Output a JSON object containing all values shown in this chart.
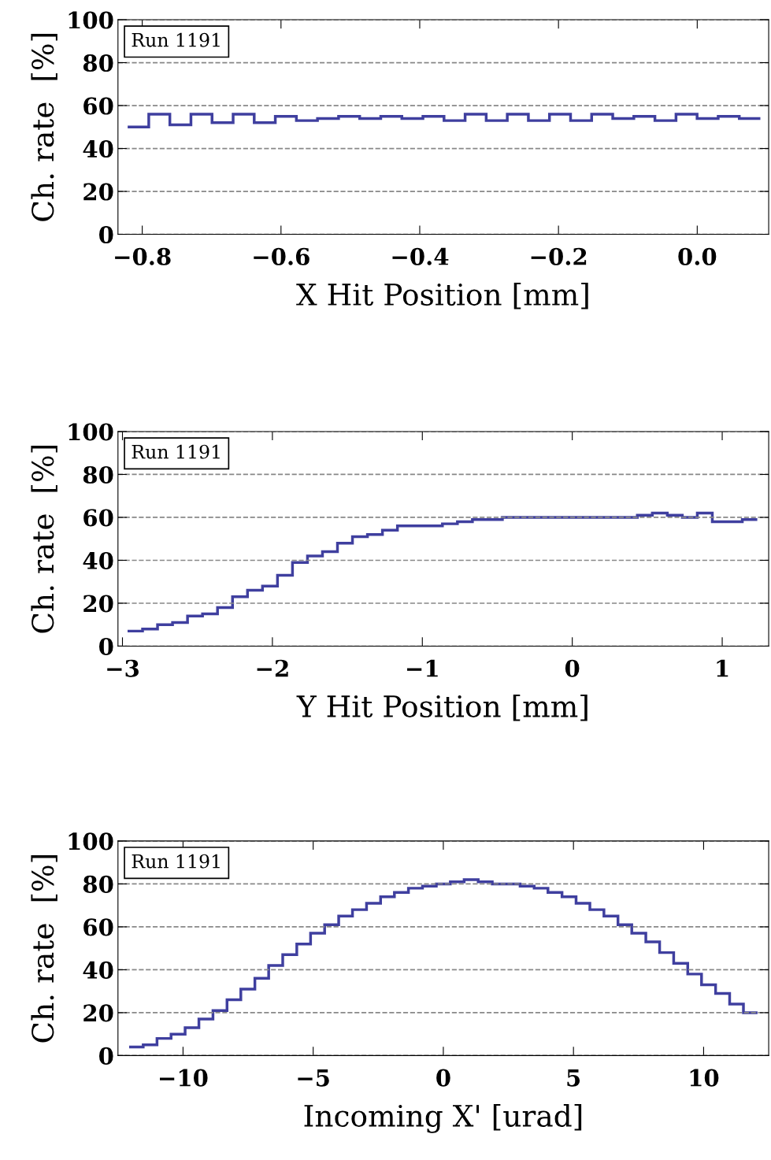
{
  "chart_data": [
    {
      "type": "histogram",
      "xlabel": "X Hit Position [mm]",
      "ylabel": "Ch. rate  [%]",
      "annotations": [
        "Run 1191"
      ],
      "color": "#3f3f9f",
      "bins": [
        -0.821,
        -0.7906,
        -0.7602,
        -0.7298,
        -0.6994,
        -0.669,
        -0.6386,
        -0.6082,
        -0.5778,
        -0.5474,
        -0.517,
        -0.4866,
        -0.4562,
        -0.4258,
        -0.3954,
        -0.365,
        -0.3346,
        -0.3042,
        -0.2738,
        -0.2434,
        -0.213,
        -0.1826,
        -0.1522,
        -0.1218,
        -0.0914,
        -0.061,
        -0.0306,
        -0.0002,
        0.0302,
        0.0606,
        0.091
      ],
      "values": [
        50,
        56,
        51,
        56,
        52,
        56,
        52,
        55,
        53,
        54,
        55,
        54,
        55,
        54,
        55,
        53,
        56,
        53,
        56,
        53,
        56,
        53,
        56,
        54,
        55,
        53,
        56,
        54,
        55,
        54
      ],
      "xlim": [
        -0.835,
        0.103
      ],
      "xticks": [
        {
          "value": -0.8,
          "label": "−0.8"
        },
        {
          "value": -0.6,
          "label": "−0.6"
        },
        {
          "value": -0.4,
          "label": "−0.4"
        },
        {
          "value": -0.2,
          "label": "−0.2"
        },
        {
          "value": 0,
          "label": "0.0"
        }
      ],
      "ylim": [
        0,
        100
      ],
      "yticks": [
        0,
        20,
        40,
        60,
        80,
        100
      ],
      "grid": "y"
    },
    {
      "type": "histogram",
      "xlabel": "Y Hit Position [mm]",
      "ylabel": "Ch. rate  [%]",
      "annotations": [
        "Run 1191"
      ],
      "color": "#3f3f9f",
      "bins": [
        -2.966,
        -2.866,
        -2.766,
        -2.666,
        -2.566,
        -2.466,
        -2.366,
        -2.266,
        -2.166,
        -2.066,
        -1.966,
        -1.866,
        -1.766,
        -1.666,
        -1.566,
        -1.466,
        -1.366,
        -1.266,
        -1.166,
        -1.066,
        -0.966,
        -0.866,
        -0.766,
        -0.666,
        -0.566,
        -0.466,
        -0.366,
        -0.266,
        -0.166,
        -0.066,
        0.034,
        0.134,
        0.234,
        0.334,
        0.434,
        0.534,
        0.634,
        0.734,
        0.834,
        0.934,
        1.034,
        1.134,
        1.234
      ],
      "values": [
        7,
        8,
        10,
        11,
        14,
        15,
        18,
        23,
        26,
        28,
        33,
        39,
        42,
        44,
        48,
        51,
        52,
        54,
        56,
        56,
        56,
        57,
        58,
        59,
        59,
        60,
        60,
        60,
        60,
        60,
        60,
        60,
        60,
        60,
        61,
        62,
        61,
        60,
        62,
        58,
        58,
        59
      ],
      "xlim": [
        -3.03,
        1.31
      ],
      "xticks": [
        {
          "value": -3,
          "label": "−3"
        },
        {
          "value": -2,
          "label": "−2"
        },
        {
          "value": -1,
          "label": "−1"
        },
        0,
        1
      ],
      "ylim": [
        0,
        100
      ],
      "yticks": [
        0,
        20,
        40,
        60,
        80,
        100
      ],
      "grid": "y"
    },
    {
      "type": "histogram",
      "xlabel": "Incoming X' [urad]",
      "ylabel": "Ch. rate  [%]",
      "annotations": [
        "Run 1191"
      ],
      "color": "#3f3f9f",
      "bins": [
        -12.07,
        -11.53,
        -11.0,
        -10.46,
        -9.92,
        -9.39,
        -8.85,
        -8.31,
        -7.78,
        -7.24,
        -6.71,
        -6.17,
        -5.63,
        -5.1,
        -4.56,
        -4.02,
        -3.49,
        -2.95,
        -2.41,
        -1.88,
        -1.34,
        -0.8,
        -0.27,
        0.27,
        0.8,
        1.34,
        1.88,
        2.41,
        2.95,
        3.49,
        4.02,
        4.56,
        5.1,
        5.63,
        6.17,
        6.71,
        7.24,
        7.78,
        8.31,
        8.85,
        9.39,
        9.92,
        10.46,
        11.0,
        11.53,
        12.07
      ],
      "values": [
        4,
        5,
        8,
        10,
        13,
        17,
        21,
        26,
        31,
        36,
        42,
        47,
        52,
        57,
        61,
        65,
        68,
        71,
        74,
        76,
        78,
        79,
        80,
        81,
        82,
        81,
        80,
        80,
        79,
        78,
        76,
        74,
        71,
        68,
        65,
        61,
        57,
        53,
        48,
        43,
        38,
        33,
        29,
        24,
        20
      ],
      "xlim": [
        -12.5,
        12.5
      ],
      "xticks": [
        {
          "value": -10,
          "label": "−10"
        },
        {
          "value": -5,
          "label": "−5"
        },
        0,
        5,
        10
      ],
      "ylim": [
        0,
        100
      ],
      "yticks": [
        0,
        20,
        40,
        60,
        80,
        100
      ],
      "grid": "y"
    }
  ]
}
